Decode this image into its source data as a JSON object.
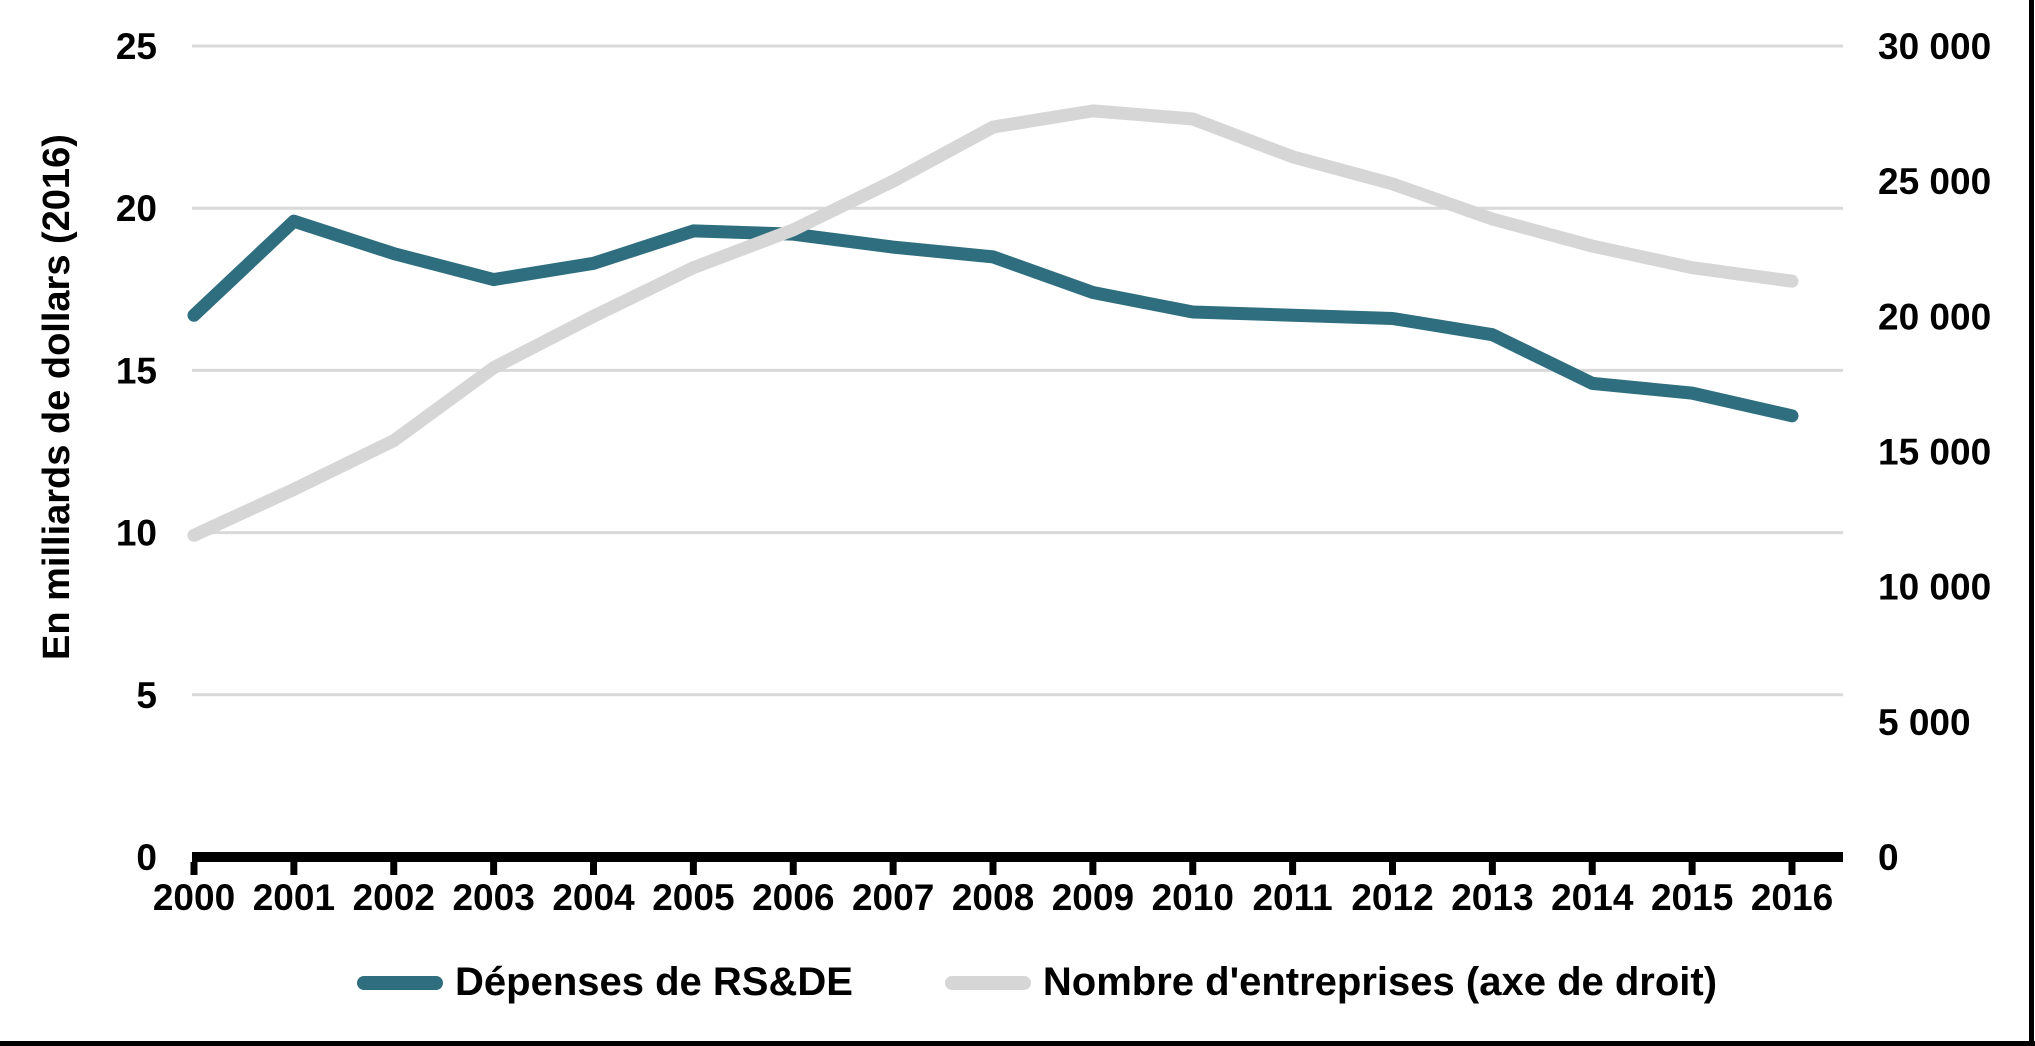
{
  "figure": {
    "y_axis_title": "En milliards de dollars (2016)"
  },
  "chart_data": {
    "type": "line",
    "x": [
      "2000",
      "2001",
      "2002",
      "2003",
      "2004",
      "2005",
      "2006",
      "2007",
      "2008",
      "2009",
      "2010",
      "2011",
      "2012",
      "2013",
      "2014",
      "2015",
      "2016"
    ],
    "series": [
      {
        "name": "Dépenses de RS&DE",
        "axis": "left",
        "color": "#2e6e7f",
        "values": [
          16.7,
          19.6,
          18.6,
          17.8,
          18.3,
          19.3,
          19.2,
          18.8,
          18.5,
          17.4,
          16.8,
          16.7,
          16.6,
          16.1,
          14.6,
          14.3,
          13.6
        ]
      },
      {
        "name": "Nombre d'entreprises (axe de droit)",
        "axis": "right",
        "color": "#d6d6d6",
        "values": [
          11900,
          13600,
          15400,
          18100,
          20000,
          21800,
          23200,
          25000,
          27000,
          27600,
          27300,
          25900,
          24900,
          23600,
          22600,
          21800,
          21300
        ]
      }
    ],
    "left_axis": {
      "min": 0,
      "max": 25,
      "step": 5,
      "labels": [
        "0",
        "5",
        "10",
        "15",
        "20",
        "25"
      ]
    },
    "right_axis": {
      "min": 0,
      "max": 30000,
      "step": 5000,
      "labels": [
        "0",
        "5 000",
        "10 000",
        "15 000",
        "20 000",
        "25 000",
        "30 000"
      ]
    },
    "grid": "horizontal",
    "gridline_color": "#d9d9d9",
    "axis_line_color": "#000000",
    "legend_position": "bottom"
  }
}
